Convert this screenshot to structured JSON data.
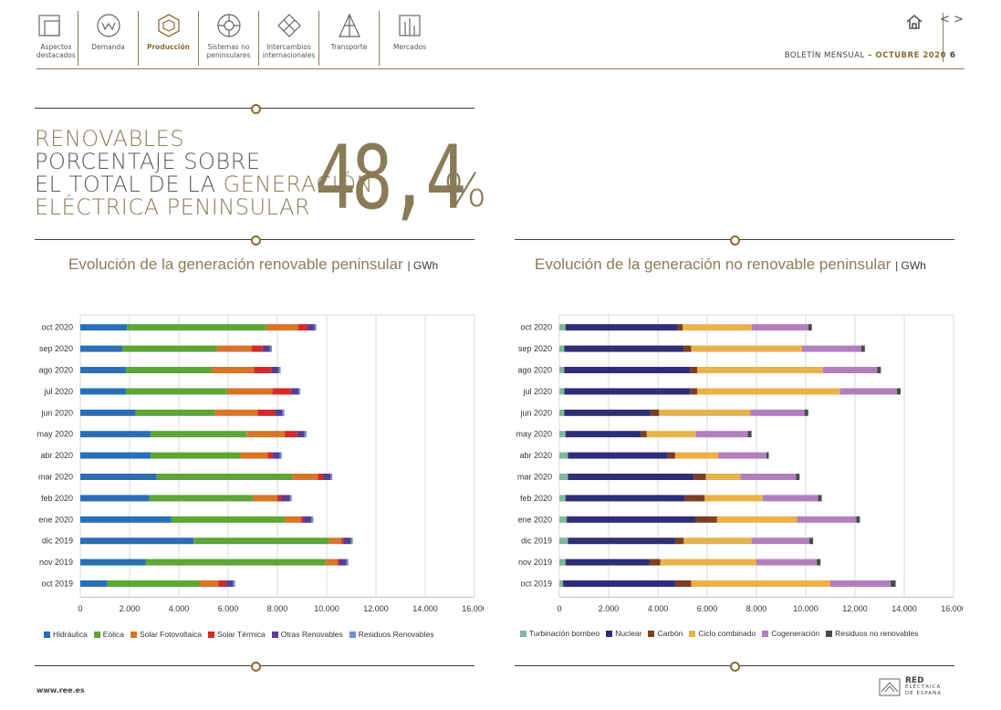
{
  "nav": [
    {
      "label": "Aspectos\ndestacados",
      "icon": "aspectos-icon",
      "active": false
    },
    {
      "label": "Demanda",
      "icon": "demanda-icon",
      "active": false
    },
    {
      "label": "Producción",
      "icon": "produccion-icon",
      "active": true
    },
    {
      "label": "Sistemas no\npeninsulares",
      "icon": "sistemas-icon",
      "active": false
    },
    {
      "label": "Intercambios\ninternacionales",
      "icon": "intercambios-icon",
      "active": false
    },
    {
      "label": "Transporte",
      "icon": "transporte-icon",
      "active": false
    },
    {
      "label": "Mercados",
      "icon": "mercados-icon",
      "active": false
    }
  ],
  "header": {
    "bulletin_prefix": "BOLETÍN MENSUAL",
    "bulletin_dash": " – ",
    "bulletin_month": "OCTUBRE 2020",
    "page_number": "6",
    "nav_prev": "<",
    "nav_next": ">"
  },
  "highlight": {
    "line1": "RENOVABLES",
    "line2": "PORCENTAJE SOBRE",
    "line3a": "EL TOTAL DE LA ",
    "line3b": "GENERACIÓN",
    "line4": "ELÉCTRICA PENINSULAR",
    "value": "48,4",
    "unit": "%"
  },
  "footer": {
    "url": "www.ree.es",
    "logo_main": "RED",
    "logo_sub1": "ELÉCTRICA",
    "logo_sub2": "DE ESPAÑA"
  },
  "chart_data": [
    {
      "type": "bar",
      "orientation": "horizontal",
      "stacked": true,
      "title": "Evolución de la generación renovable peninsular",
      "unit": "GWh",
      "categories": [
        "oct 2020",
        "sep 2020",
        "ago 2020",
        "jul 2020",
        "jun 2020",
        "may 2020",
        "abr 2020",
        "mar 2020",
        "feb 2020",
        "ene 2020",
        "dic 2019",
        "nov 2019",
        "oct 2019"
      ],
      "xlim": [
        0,
        16000
      ],
      "xticks": [
        "0",
        "2.000",
        "4.000",
        "6.000",
        "8.000",
        "10.000",
        "12.000",
        "14.000",
        "16.000"
      ],
      "grid": true,
      "legend_position": "bottom",
      "series": [
        {
          "name": "Hidráulica",
          "color": "#2a6fb5",
          "values": [
            1900,
            1700,
            1850,
            1850,
            2250,
            2850,
            2850,
            3100,
            2800,
            3700,
            4600,
            2650,
            1100
          ]
        },
        {
          "name": "Eólica",
          "color": "#5ea536",
          "values": [
            5650,
            3850,
            3500,
            4100,
            3200,
            3900,
            3650,
            5500,
            4200,
            4600,
            5500,
            7300,
            3750
          ]
        },
        {
          "name": "Solar Fotovoltaica",
          "color": "#d87529",
          "values": [
            1300,
            1400,
            1700,
            1850,
            1750,
            1550,
            1100,
            1050,
            1000,
            650,
            500,
            500,
            750
          ]
        },
        {
          "name": "Solar Térmica",
          "color": "#d42a2a",
          "values": [
            350,
            450,
            700,
            750,
            700,
            500,
            200,
            200,
            150,
            80,
            80,
            50,
            300
          ]
        },
        {
          "name": "Otras Renovables",
          "color": "#5a3d8f",
          "values": [
            300,
            300,
            300,
            300,
            300,
            300,
            300,
            300,
            350,
            350,
            300,
            300,
            300
          ]
        },
        {
          "name": "Residuos Renovables",
          "color": "#6c8fd0",
          "values": [
            80,
            80,
            80,
            80,
            80,
            80,
            80,
            80,
            80,
            80,
            80,
            80,
            80
          ]
        }
      ]
    },
    {
      "type": "bar",
      "orientation": "horizontal",
      "stacked": true,
      "title": "Evolución de la generación no renovable peninsular",
      "unit": "GWh",
      "categories": [
        "oct 2020",
        "sep 2020",
        "ago 2020",
        "jul 2020",
        "jun 2020",
        "may 2020",
        "abr 2020",
        "mar 2020",
        "feb 2020",
        "ene 2020",
        "dic 2019",
        "nov 2019",
        "oct 2019"
      ],
      "xlim": [
        0,
        16000
      ],
      "xticks": [
        "0",
        "2.000",
        "4.000",
        "6.000",
        "8.000",
        "10.000",
        "12.000",
        "14.000",
        "16.000"
      ],
      "grid": true,
      "legend_position": "bottom",
      "series": [
        {
          "name": "Turbinación bombeo",
          "color": "#7fb89a",
          "values": [
            250,
            200,
            200,
            200,
            200,
            250,
            350,
            350,
            250,
            300,
            350,
            250,
            150
          ]
        },
        {
          "name": "Nuclear",
          "color": "#2e2d7a",
          "values": [
            4550,
            4850,
            5100,
            5100,
            3500,
            3050,
            4050,
            5100,
            4850,
            5250,
            4350,
            3400,
            4550
          ]
        },
        {
          "name": "Carbón",
          "color": "#7a3f22",
          "values": [
            200,
            300,
            300,
            300,
            350,
            250,
            300,
            500,
            800,
            850,
            350,
            450,
            650
          ]
        },
        {
          "name": "Ciclo combinado",
          "color": "#eab14a",
          "values": [
            2800,
            4500,
            5100,
            5800,
            3700,
            2000,
            1750,
            1400,
            2350,
            3250,
            2750,
            3900,
            5650
          ]
        },
        {
          "name": "Cogeneración",
          "color": "#b17fc0",
          "values": [
            2300,
            2400,
            2200,
            2300,
            2200,
            2100,
            1950,
            2250,
            2250,
            2400,
            2350,
            2450,
            2450
          ]
        },
        {
          "name": "Residuos no renovables",
          "color": "#4a4a4a",
          "values": [
            150,
            150,
            150,
            150,
            150,
            150,
            100,
            150,
            150,
            150,
            150,
            150,
            200
          ]
        }
      ]
    }
  ]
}
